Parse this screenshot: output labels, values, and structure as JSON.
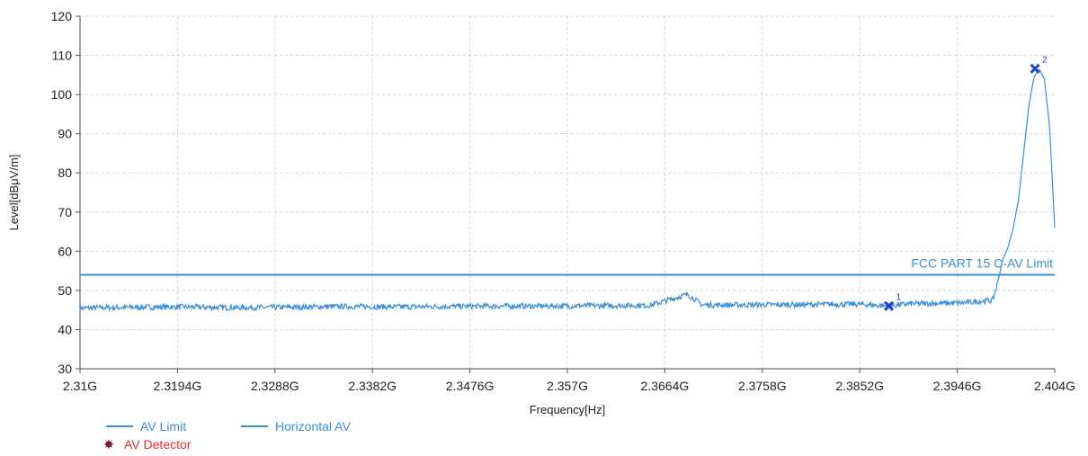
{
  "chart_data": {
    "type": "line",
    "xlabel": "Frequency[Hz]",
    "ylabel": "Level[dBμV/m]",
    "xlim": [
      2.31,
      2.404
    ],
    "ylim": [
      30,
      120
    ],
    "x_unit": "GHz",
    "grid": true,
    "x_ticks": [
      {
        "value": 2.31,
        "label": "2.31G"
      },
      {
        "value": 2.3194,
        "label": "2.3194G"
      },
      {
        "value": 2.3288,
        "label": "2.3288G"
      },
      {
        "value": 2.3382,
        "label": "2.3382G"
      },
      {
        "value": 2.3476,
        "label": "2.3476G"
      },
      {
        "value": 2.357,
        "label": "2.357G"
      },
      {
        "value": 2.3664,
        "label": "2.3664G"
      },
      {
        "value": 2.3758,
        "label": "2.3758G"
      },
      {
        "value": 2.3852,
        "label": "2.3852G"
      },
      {
        "value": 2.3946,
        "label": "2.3946G"
      },
      {
        "value": 2.404,
        "label": "2.404G"
      }
    ],
    "y_ticks": [
      30,
      40,
      50,
      60,
      70,
      80,
      90,
      100,
      110,
      120
    ],
    "series": [
      {
        "name": "AV Limit",
        "color": "#3a8fd6",
        "x": [
          2.31,
          2.404
        ],
        "y": [
          54,
          54
        ]
      },
      {
        "name": "Horizontal AV",
        "color": "#3a8fd6",
        "x": [
          2.31,
          2.315,
          2.32,
          2.325,
          2.33,
          2.335,
          2.34,
          2.345,
          2.35,
          2.355,
          2.36,
          2.365,
          2.3686,
          2.37,
          2.375,
          2.38,
          2.385,
          2.388,
          2.39,
          2.395,
          2.398,
          2.3985,
          2.399,
          2.3995,
          2.4,
          2.4005,
          2.401,
          2.4015,
          2.402,
          2.4025,
          2.403,
          2.4035,
          2.404
        ],
        "y": [
          45.5,
          45.7,
          45.8,
          45.6,
          45.7,
          45.9,
          45.8,
          45.9,
          46.0,
          46.0,
          46.1,
          46.2,
          49.0,
          46.3,
          46.3,
          46.4,
          46.5,
          46.0,
          46.6,
          46.8,
          47.5,
          52.0,
          58.0,
          61.0,
          66.0,
          73.0,
          85.0,
          97.0,
          104.5,
          106.5,
          104.0,
          92.0,
          66.0
        ]
      }
    ],
    "annotations": [
      {
        "text": "FCC PART 15 C-AV Limit",
        "x": 2.404,
        "y": 54,
        "color": "#3a8fd6"
      }
    ],
    "markers": [
      {
        "label": "1",
        "x": 2.388,
        "y": 46.0,
        "color": "#1f3fd8"
      },
      {
        "label": "2",
        "x": 2.4021,
        "y": 106.6,
        "color": "#1f3fd8"
      }
    ],
    "legend": {
      "placement": "bottom-left",
      "entries": [
        {
          "label": "AV Limit",
          "type": "line",
          "color": "#3a8fd6"
        },
        {
          "label": "Horizontal AV",
          "type": "line",
          "color": "#3a8fd6"
        },
        {
          "label": "AV Detector",
          "type": "marker",
          "color": "#7a1a3a",
          "glyph": "✸",
          "text_color": "#e0312c"
        }
      ]
    }
  }
}
